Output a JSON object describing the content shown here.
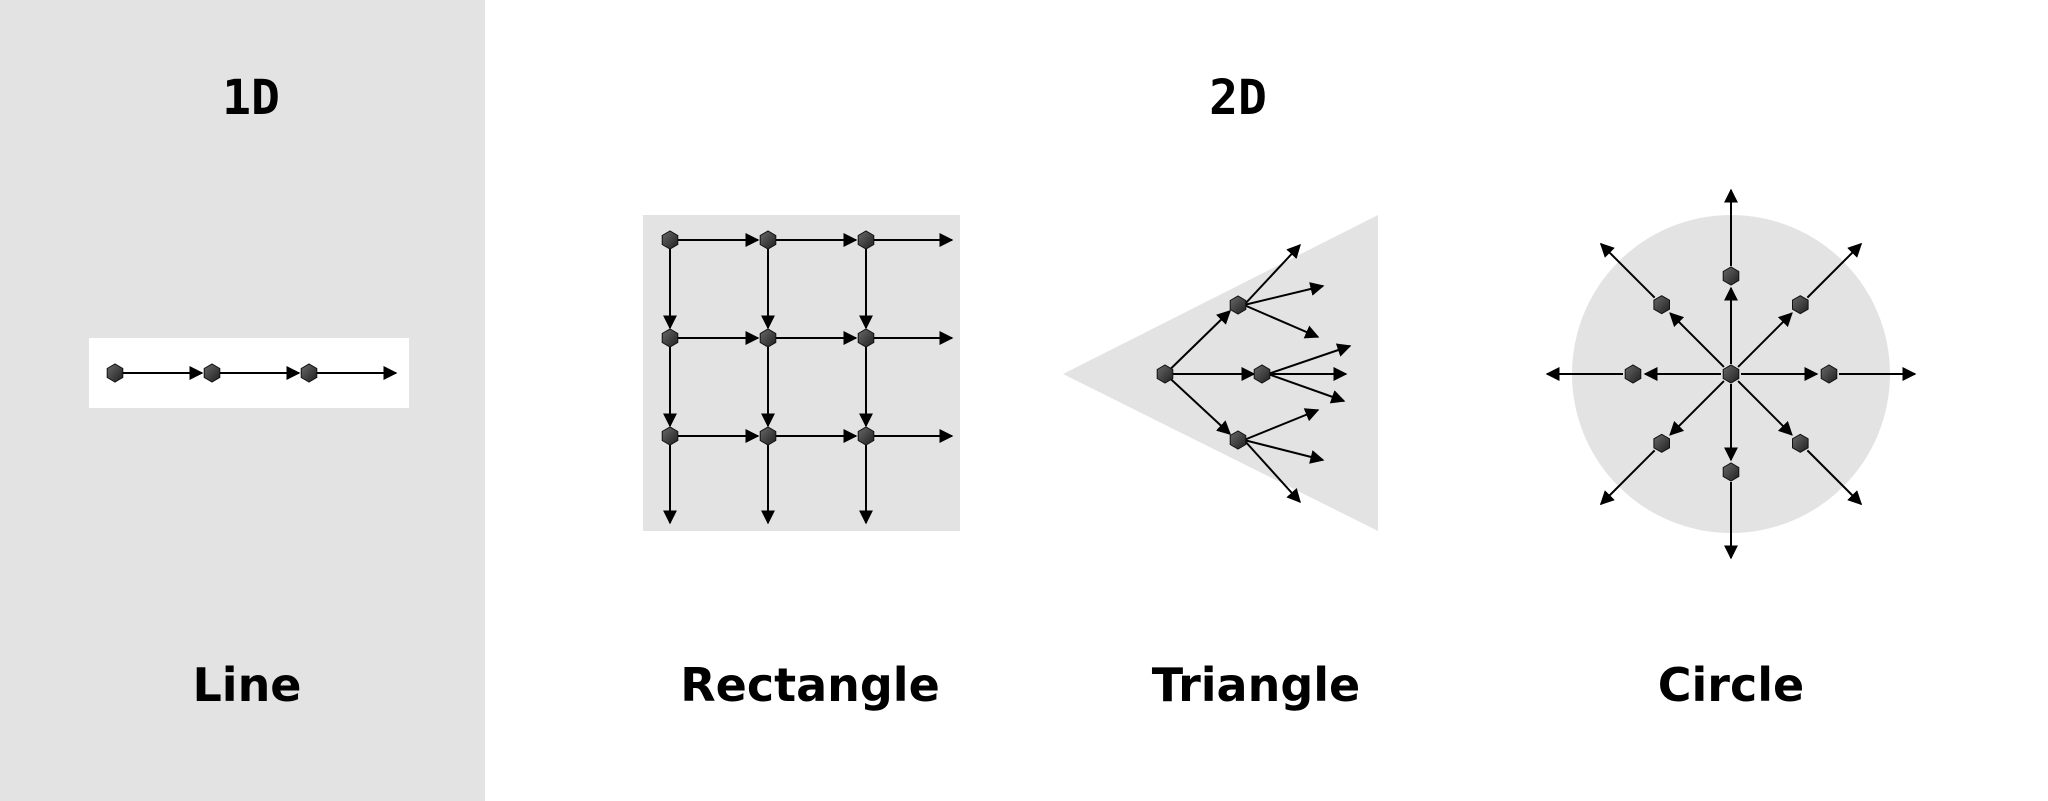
{
  "sections": {
    "one_d": {
      "heading": "1D"
    },
    "two_d": {
      "heading": "2D"
    }
  },
  "diagrams": {
    "line": {
      "label": "Line",
      "nodes": 3
    },
    "rectangle": {
      "label": "Rectangle",
      "rows": 3,
      "cols": 3
    },
    "triangle": {
      "label": "Triangle",
      "branching": 3
    },
    "circle": {
      "label": "Circle",
      "rays": 8
    }
  },
  "colors": {
    "panel": "#e3e3e3",
    "shape": "#e3e3e3",
    "line_box": "#ffffff",
    "arrow": "#000000",
    "node": "#3a3a3a"
  }
}
